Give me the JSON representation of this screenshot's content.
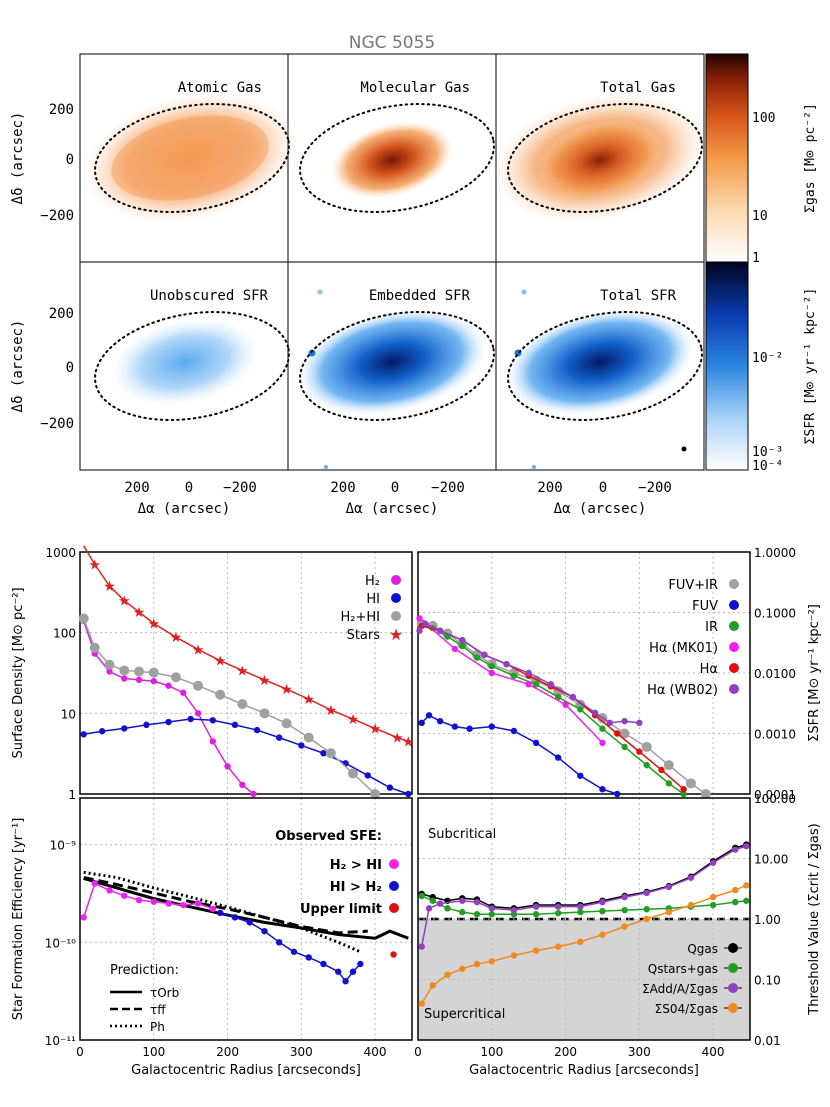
{
  "title": "NGC 5055",
  "maps": {
    "panel_titles": [
      "Atomic Gas",
      "Molecular Gas",
      "Total Gas",
      "Unobscured SFR",
      "Embedded SFR",
      "Total SFR"
    ],
    "ylabel": "Δδ (arcsec)",
    "xlabel": "Δα (arcsec)",
    "yticks": [
      "200",
      "0",
      "−200"
    ],
    "xticks": [
      "200",
      "0",
      "−200"
    ],
    "cbar_gas": {
      "label": "Σgas [M⊙ pc⁻²]",
      "ticks": [
        "100",
        "10",
        "1"
      ]
    },
    "cbar_sfr": {
      "label": "ΣSFR [M⊙ yr⁻¹ kpc⁻²]",
      "ticks": [
        "10⁻²",
        "10⁻³",
        "10⁻⁴"
      ]
    },
    "colors": {
      "gas": "#f08a2a",
      "gas_dark": "#7a1c05",
      "sfr": "#1a78d8",
      "sfr_dark": "#021a6a"
    }
  },
  "chart_data": [
    {
      "type": "line",
      "panel": "surface-density",
      "ylabel": "Surface Density [M⊙ pc⁻²]",
      "xlim": [
        0,
        450
      ],
      "ylim": [
        1,
        1000
      ],
      "yscale": "log",
      "yticks": [
        "1000",
        "100",
        "10",
        "1"
      ],
      "legend": [
        {
          "name": "H₂",
          "color": "#e020e0"
        },
        {
          "name": "HI",
          "color": "#1010d0"
        },
        {
          "name": "H₂+HI",
          "color": "#a0a0a0"
        },
        {
          "name": "Stars",
          "color": "#e02020"
        }
      ],
      "series": [
        {
          "name": "H₂",
          "x": [
            5,
            20,
            40,
            60,
            80,
            100,
            120,
            140,
            160,
            180,
            200,
            220,
            235
          ],
          "y": [
            140,
            55,
            33,
            27,
            26,
            25,
            22,
            18,
            10,
            4.5,
            2.2,
            1.3,
            1
          ]
        },
        {
          "name": "HI",
          "x": [
            5,
            30,
            60,
            90,
            120,
            150,
            180,
            210,
            240,
            270,
            300,
            330,
            360,
            390,
            420,
            445
          ],
          "y": [
            5.5,
            6,
            6.5,
            7.2,
            7.8,
            8.5,
            8.2,
            7.2,
            6.2,
            5,
            4,
            3.2,
            2.4,
            1.7,
            1.2,
            1
          ]
        },
        {
          "name": "H₂+HI",
          "x": [
            5,
            20,
            40,
            60,
            80,
            100,
            130,
            160,
            190,
            220,
            250,
            280,
            310,
            340,
            370,
            400
          ],
          "y": [
            150,
            65,
            40,
            34,
            33,
            32,
            28,
            22,
            17,
            13,
            10,
            7.5,
            5,
            3.2,
            1.8,
            1
          ]
        },
        {
          "name": "Stars",
          "x": [
            5,
            20,
            40,
            60,
            80,
            100,
            130,
            160,
            190,
            220,
            250,
            280,
            310,
            340,
            370,
            400,
            430,
            445
          ],
          "y": [
            1200,
            700,
            380,
            250,
            180,
            130,
            88,
            62,
            45,
            34,
            26,
            20,
            15,
            11,
            8.5,
            6.5,
            5,
            4.5
          ]
        }
      ]
    },
    {
      "type": "line",
      "panel": "sfr-density",
      "ylabel": "ΣSFR [M⊙ yr⁻¹ kpc⁻²]",
      "xlim": [
        0,
        450
      ],
      "ylim": [
        0.0001,
        1
      ],
      "yscale": "log",
      "yticks": [
        "1.0000",
        "0.1000",
        "0.0100",
        "0.0010",
        "0.0001"
      ],
      "legend": [
        {
          "name": "FUV+IR",
          "color": "#a0a0a0"
        },
        {
          "name": "FUV",
          "color": "#1010d0"
        },
        {
          "name": "IR",
          "color": "#20a020"
        },
        {
          "name": "Hα (MK01)",
          "color": "#f020f0"
        },
        {
          "name": "Hα",
          "color": "#e01010"
        },
        {
          "name": "Hα (WB02)",
          "color": "#9040c0"
        }
      ],
      "series": [
        {
          "name": "FUV+IR",
          "x": [
            5,
            20,
            40,
            60,
            80,
            100,
            130,
            160,
            190,
            220,
            250,
            280,
            310,
            340,
            370,
            390
          ],
          "y": [
            0.065,
            0.06,
            0.045,
            0.03,
            0.02,
            0.014,
            0.01,
            0.0075,
            0.005,
            0.003,
            0.0018,
            0.001,
            0.0006,
            0.0003,
            0.00015,
            0.0001
          ]
        },
        {
          "name": "FUV",
          "x": [
            5,
            15,
            30,
            50,
            70,
            100,
            130,
            160,
            190,
            220,
            250,
            270
          ],
          "y": [
            0.0015,
            0.002,
            0.0016,
            0.0013,
            0.0012,
            0.0013,
            0.0011,
            0.0007,
            0.0004,
            0.0002,
            0.00012,
            0.0001
          ]
        },
        {
          "name": "IR",
          "x": [
            5,
            20,
            40,
            60,
            80,
            100,
            130,
            160,
            190,
            220,
            250,
            280,
            310,
            340,
            360
          ],
          "y": [
            0.06,
            0.055,
            0.04,
            0.028,
            0.018,
            0.013,
            0.009,
            0.0065,
            0.004,
            0.0025,
            0.0012,
            0.0006,
            0.0003,
            0.00015,
            0.0001
          ]
        },
        {
          "name": "Hα (MK01)",
          "x": [
            2,
            50,
            100,
            150,
            200,
            250
          ],
          "y": [
            0.08,
            0.025,
            0.01,
            0.0065,
            0.003,
            0.0007
          ]
        },
        {
          "name": "Hα",
          "x": [
            5,
            30,
            60,
            90,
            120,
            150,
            180,
            210,
            240,
            270,
            300,
            330,
            360
          ],
          "y": [
            0.06,
            0.05,
            0.035,
            0.02,
            0.014,
            0.009,
            0.006,
            0.004,
            0.002,
            0.001,
            0.0005,
            0.00025,
            0.00012
          ]
        },
        {
          "name": "Hα (WB02)",
          "x": [
            2,
            10,
            30,
            60,
            90,
            120,
            150,
            180,
            210,
            240,
            260,
            280,
            300
          ],
          "y": [
            0.05,
            0.065,
            0.05,
            0.035,
            0.02,
            0.014,
            0.01,
            0.0065,
            0.004,
            0.0022,
            0.0015,
            0.0016,
            0.0015
          ]
        }
      ]
    },
    {
      "type": "line",
      "panel": "sfe",
      "ylabel": "Star Formation Efficiency [yr⁻¹]",
      "xlabel": "Galactocentric Radius [arcseconds]",
      "xlim": [
        0,
        450
      ],
      "ylim": [
        1e-11,
        3e-09
      ],
      "yscale": "log",
      "yticks": [
        "10⁻⁹",
        "10⁻¹⁰",
        "10⁻¹¹"
      ],
      "xticks": [
        "0",
        "100",
        "200",
        "300",
        "400"
      ],
      "legend_title": "Observed SFE:",
      "legend": [
        {
          "name": "H₂ > HI",
          "color": "#f020f0"
        },
        {
          "name": "HI > H₂",
          "color": "#1010d0"
        },
        {
          "name": "Upper limit",
          "color": "#e01010"
        }
      ],
      "prediction_title": "Prediction:",
      "predictions": [
        {
          "name": "τOrb",
          "style": "solid",
          "x": [
            5,
            50,
            100,
            150,
            200,
            250,
            300,
            350,
            400,
            420,
            445
          ],
          "y": [
            4.5e-10,
            3.6e-10,
            2.8e-10,
            2.3e-10,
            1.9e-10,
            1.6e-10,
            1.4e-10,
            1.2e-10,
            1.1e-10,
            1.3e-10,
            1.1e-10
          ]
        },
        {
          "name": "τff",
          "style": "dashed",
          "x": [
            5,
            50,
            100,
            150,
            200,
            250,
            300,
            350,
            390
          ],
          "y": [
            4.6e-10,
            3.9e-10,
            3.2e-10,
            2.6e-10,
            2.2e-10,
            1.8e-10,
            1.45e-10,
            1.25e-10,
            1.3e-10
          ]
        },
        {
          "name": "Ph",
          "style": "dotted",
          "x": [
            5,
            50,
            100,
            150,
            200,
            250,
            300,
            350,
            380
          ],
          "y": [
            5.2e-10,
            4.6e-10,
            3.6e-10,
            2.9e-10,
            2.3e-10,
            1.8e-10,
            1.4e-10,
            1e-10,
            8e-11
          ]
        }
      ],
      "series": [
        {
          "name": "H₂ > HI",
          "x": [
            5,
            20,
            40,
            60,
            80,
            100,
            120,
            140,
            160,
            180
          ],
          "y": [
            1.8e-10,
            4e-10,
            3.4e-10,
            3e-10,
            2.7e-10,
            2.6e-10,
            2.5e-10,
            2.4e-10,
            2.5e-10,
            2.2e-10
          ]
        },
        {
          "name": "HI > H₂",
          "x": [
            190,
            210,
            230,
            250,
            270,
            290,
            310,
            330,
            350,
            360,
            370,
            380
          ],
          "y": [
            2e-10,
            1.8e-10,
            1.6e-10,
            1.3e-10,
            1e-10,
            8e-11,
            7e-11,
            6e-11,
            5e-11,
            4e-11,
            5e-11,
            6e-11
          ]
        },
        {
          "name": "Upper limit",
          "x": [
            425
          ],
          "y": [
            7.5e-11
          ]
        }
      ]
    },
    {
      "type": "line",
      "panel": "threshold",
      "ylabel": "Threshold Value (Σcrit / Σgas)",
      "xlabel": "Galactocentric Radius [arcseconds]",
      "xlim": [
        0,
        450
      ],
      "ylim": [
        0.01,
        100
      ],
      "yscale": "log",
      "yticks": [
        "100.00",
        "10.00",
        "1.00",
        "0.10",
        "0.01"
      ],
      "xticks": [
        "0",
        "100",
        "200",
        "300",
        "400"
      ],
      "region_labels": [
        "Subcritical",
        "Supercritical"
      ],
      "legend": [
        {
          "name": "Qgas",
          "color": "#000000"
        },
        {
          "name": "Qstars+gas",
          "color": "#20a020"
        },
        {
          "name": "ΣAdd/A/Σgas",
          "color": "#9040c0"
        },
        {
          "name": "ΣS04/Σgas",
          "color": "#f08a20"
        }
      ],
      "series": [
        {
          "name": "Qgas",
          "x": [
            5,
            20,
            40,
            60,
            80,
            100,
            130,
            160,
            190,
            220,
            250,
            280,
            310,
            340,
            370,
            400,
            430,
            445
          ],
          "y": [
            2.6,
            2.3,
            2,
            2.2,
            2.1,
            1.6,
            1.5,
            1.7,
            1.7,
            1.7,
            2,
            2.4,
            2.8,
            3.5,
            5,
            9,
            15,
            17
          ]
        },
        {
          "name": "Qstars+gas",
          "x": [
            5,
            20,
            40,
            60,
            80,
            100,
            130,
            160,
            190,
            220,
            250,
            280,
            310,
            340,
            370,
            400,
            430,
            445
          ],
          "y": [
            2.4,
            2,
            1.5,
            1.3,
            1.2,
            1.2,
            1.2,
            1.2,
            1.25,
            1.3,
            1.35,
            1.4,
            1.45,
            1.5,
            1.6,
            1.7,
            1.9,
            2
          ]
        },
        {
          "name": "ΣAdd/A/Σgas",
          "x": [
            5,
            15,
            30,
            60,
            80,
            100,
            130,
            160,
            190,
            220,
            250,
            280,
            310,
            340,
            370,
            400,
            430,
            445
          ],
          "y": [
            0.35,
            1.5,
            1.8,
            2,
            1.9,
            1.5,
            1.4,
            1.6,
            1.6,
            1.6,
            1.9,
            2.3,
            2.7,
            3.4,
            4.8,
            8.5,
            14,
            16
          ]
        },
        {
          "name": "ΣS04/Σgas",
          "x": [
            5,
            20,
            40,
            60,
            80,
            100,
            130,
            160,
            190,
            220,
            250,
            280,
            310,
            340,
            370,
            400,
            430,
            445
          ],
          "y": [
            0.04,
            0.08,
            0.12,
            0.15,
            0.18,
            0.2,
            0.25,
            0.3,
            0.35,
            0.42,
            0.55,
            0.75,
            1,
            1.3,
            1.7,
            2.3,
            3,
            3.6
          ]
        }
      ]
    }
  ]
}
